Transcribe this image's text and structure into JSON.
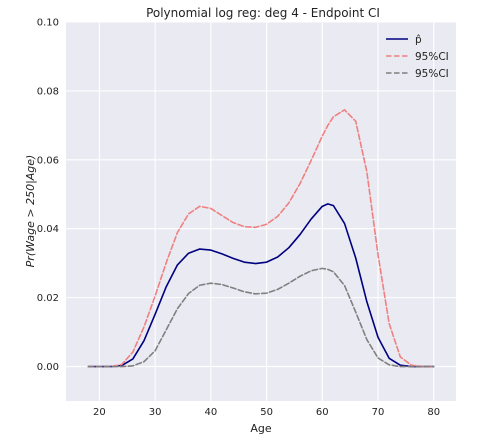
{
  "chart_data": {
    "type": "line",
    "title": "Polynomial log reg: deg 4 - Endpoint CI",
    "xlabel": "Age",
    "ylabel": "Pr(Wage > 250|Age)",
    "xlim": [
      14,
      84
    ],
    "ylim": [
      -0.01,
      0.1
    ],
    "xticks": [
      20,
      30,
      40,
      50,
      60,
      70,
      80
    ],
    "yticks": [
      0.0,
      0.02,
      0.04,
      0.06,
      0.08,
      0.1
    ],
    "ytick_labels": [
      "0.00",
      "0.02",
      "0.04",
      "0.06",
      "0.08",
      "0.10"
    ],
    "grid": true,
    "background": "#eaeaf2",
    "legend_position": "top-right",
    "x": [
      18,
      20,
      22,
      24,
      26,
      28,
      30,
      32,
      34,
      36,
      38,
      40,
      42,
      44,
      46,
      48,
      50,
      52,
      54,
      56,
      58,
      60,
      61,
      62,
      64,
      66,
      68,
      70,
      72,
      74,
      76,
      78,
      80
    ],
    "series": [
      {
        "name": "p̂",
        "color": "#000080",
        "dash": "solid",
        "values": [
          0.0,
          0.0,
          0.0,
          0.0003,
          0.0022,
          0.0075,
          0.0152,
          0.0232,
          0.0295,
          0.0329,
          0.0341,
          0.0338,
          0.0327,
          0.0314,
          0.0303,
          0.0299,
          0.0303,
          0.0318,
          0.0345,
          0.0383,
          0.0428,
          0.0465,
          0.0472,
          0.0467,
          0.0415,
          0.0315,
          0.0188,
          0.0085,
          0.0024,
          0.0004,
          0.0,
          0.0,
          0.0
        ]
      },
      {
        "name": "95%CI",
        "color": "#f08080",
        "dash": "dashed",
        "values": [
          0.0,
          0.0,
          0.0,
          0.0006,
          0.0042,
          0.0115,
          0.0205,
          0.0302,
          0.0389,
          0.0443,
          0.0465,
          0.0459,
          0.0438,
          0.0418,
          0.0406,
          0.0404,
          0.0413,
          0.0436,
          0.0475,
          0.0531,
          0.0598,
          0.0669,
          0.07,
          0.0725,
          0.0745,
          0.0712,
          0.0565,
          0.0325,
          0.0125,
          0.0028,
          0.0004,
          0.0,
          0.0
        ]
      },
      {
        "name": "95%CI",
        "color": "#808080",
        "dash": "dashed",
        "values": [
          0.0,
          0.0,
          0.0,
          0.0,
          0.0002,
          0.0014,
          0.0046,
          0.0107,
          0.0168,
          0.0212,
          0.0236,
          0.0242,
          0.0238,
          0.0228,
          0.0217,
          0.0211,
          0.0213,
          0.0224,
          0.0242,
          0.0262,
          0.0278,
          0.0285,
          0.0282,
          0.0275,
          0.0235,
          0.0158,
          0.0078,
          0.0025,
          0.0005,
          0.0,
          0.0,
          0.0,
          0.0
        ]
      }
    ]
  }
}
